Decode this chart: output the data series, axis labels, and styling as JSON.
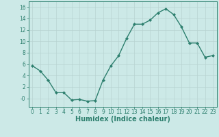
{
  "x": [
    0,
    1,
    2,
    3,
    4,
    5,
    6,
    7,
    8,
    9,
    10,
    11,
    12,
    13,
    14,
    15,
    16,
    17,
    18,
    19,
    20,
    21,
    22,
    23
  ],
  "y": [
    5.7,
    4.8,
    3.2,
    1.0,
    1.0,
    -0.3,
    -0.2,
    -0.5,
    -0.4,
    3.2,
    5.7,
    7.5,
    10.5,
    13.0,
    13.0,
    13.7,
    15.0,
    15.7,
    14.7,
    12.5,
    9.7,
    9.7,
    7.2,
    7.5
  ],
  "line_color": "#2d7f6e",
  "marker": "D",
  "markersize": 2.0,
  "linewidth": 1.0,
  "bg_color": "#cce9e7",
  "grid_color": "#b8d4d2",
  "xlabel": "Humidex (Indice chaleur)",
  "xlabel_fontsize": 7,
  "xtick_labels": [
    "0",
    "1",
    "2",
    "3",
    "4",
    "5",
    "6",
    "7",
    "8",
    "9",
    "10",
    "11",
    "12",
    "13",
    "14",
    "15",
    "16",
    "17",
    "18",
    "19",
    "20",
    "21",
    "22",
    "23"
  ],
  "ytick_labels": [
    "-0",
    "2",
    "4",
    "6",
    "8",
    "10",
    "12",
    "14",
    "16"
  ],
  "ytick_values": [
    0,
    2,
    4,
    6,
    8,
    10,
    12,
    14,
    16
  ],
  "ylim": [
    -1.5,
    17.0
  ],
  "xlim": [
    -0.5,
    23.5
  ],
  "tick_color": "#2d7f6e",
  "tick_fontsize": 5.5
}
